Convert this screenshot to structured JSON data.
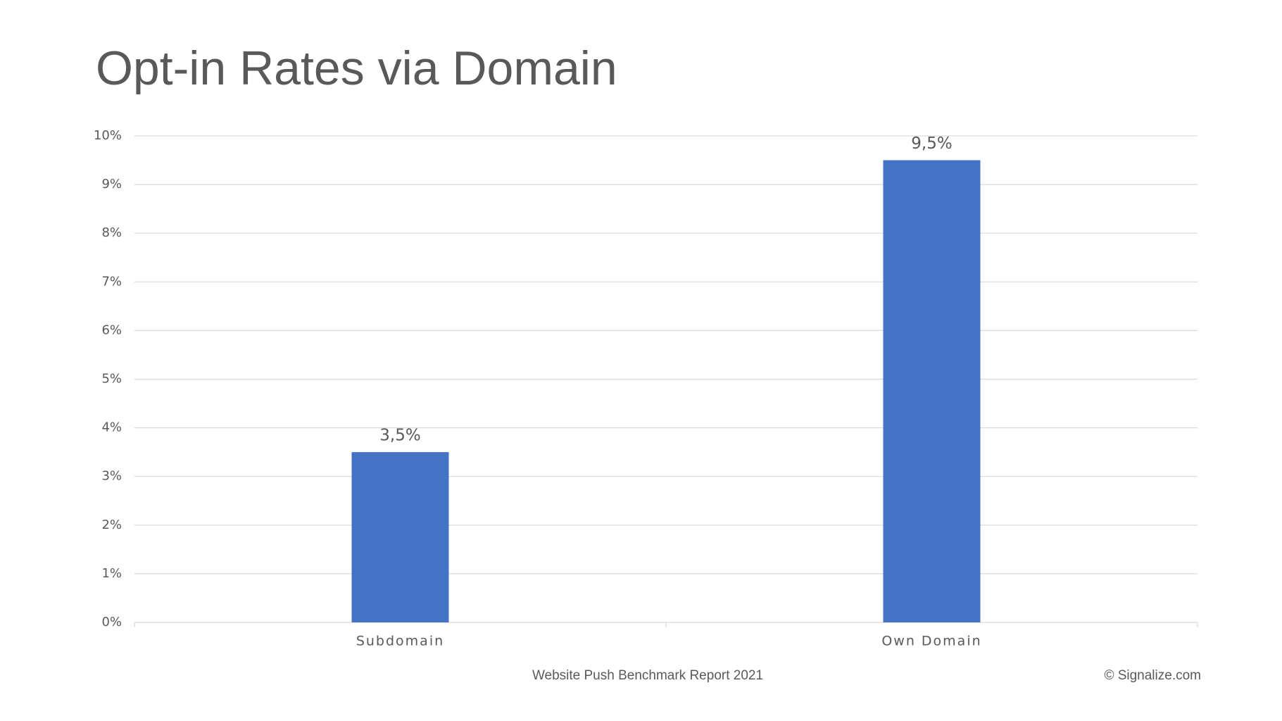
{
  "chart_data": {
    "type": "bar",
    "title": "Opt-in Rates via Domain",
    "categories": [
      "Subdomain",
      "Own Domain"
    ],
    "values": [
      3.5,
      9.5
    ],
    "value_labels": [
      "3,5%",
      "9,5%"
    ],
    "color": "#4472c4",
    "ylim": [
      0,
      10
    ],
    "yticks": [
      {
        "value": 0,
        "label": "0%"
      },
      {
        "value": 1,
        "label": "1%"
      },
      {
        "value": 2,
        "label": "2%"
      },
      {
        "value": 3,
        "label": "3%"
      },
      {
        "value": 4,
        "label": "4%"
      },
      {
        "value": 5,
        "label": "5%"
      },
      {
        "value": 6,
        "label": "6%"
      },
      {
        "value": 7,
        "label": "7%"
      },
      {
        "value": 8,
        "label": "8%"
      },
      {
        "value": 9,
        "label": "9%"
      },
      {
        "value": 10,
        "label": "10%"
      }
    ],
    "grid": true
  },
  "footer": {
    "center": "Website Push Benchmark Report 2021",
    "right": "© Signalize.com"
  }
}
